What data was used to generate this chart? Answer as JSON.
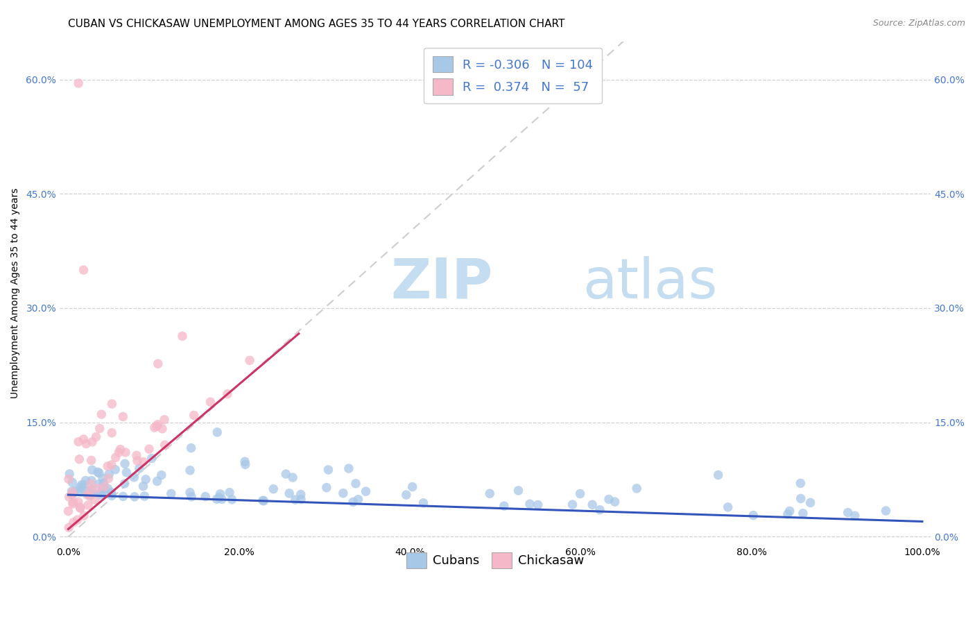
{
  "title": "CUBAN VS CHICKASAW UNEMPLOYMENT AMONG AGES 35 TO 44 YEARS CORRELATION CHART",
  "source": "Source: ZipAtlas.com",
  "ylabel": "Unemployment Among Ages 35 to 44 years",
  "xlabel": "",
  "xlim": [
    -0.01,
    1.01
  ],
  "ylim": [
    -0.01,
    0.65
  ],
  "x_ticks": [
    0.0,
    0.2,
    0.4,
    0.6,
    0.8,
    1.0
  ],
  "x_tick_labels": [
    "0.0%",
    "20.0%",
    "40.0%",
    "60.0%",
    "80.0%",
    "100.0%"
  ],
  "y_ticks": [
    0.0,
    0.15,
    0.3,
    0.45,
    0.6
  ],
  "y_tick_labels": [
    "0.0%",
    "15.0%",
    "30.0%",
    "45.0%",
    "60.0%"
  ],
  "legend_labels": [
    "Cubans",
    "Chickasaw"
  ],
  "cubans_color": "#a8c8e8",
  "chickasaw_color": "#f4b8c8",
  "cubans_line_color": "#3355bb",
  "chickasaw_line_color": "#cc3366",
  "diagonal_color": "#c8c8c8",
  "R_cubans": -0.306,
  "N_cubans": 104,
  "R_chickasaw": 0.374,
  "N_chickasaw": 57,
  "watermark_zip": "ZIP",
  "watermark_atlas": "atlas",
  "background_color": "#ffffff",
  "grid_color": "#d0d0d0",
  "title_fontsize": 11,
  "axis_label_fontsize": 10,
  "tick_fontsize": 10,
  "right_tick_color": "#4477cc",
  "cubans_line_intercept": 0.055,
  "cubans_line_slope": -0.035,
  "chickasaw_line_intercept": 0.01,
  "chickasaw_line_slope": 0.95
}
